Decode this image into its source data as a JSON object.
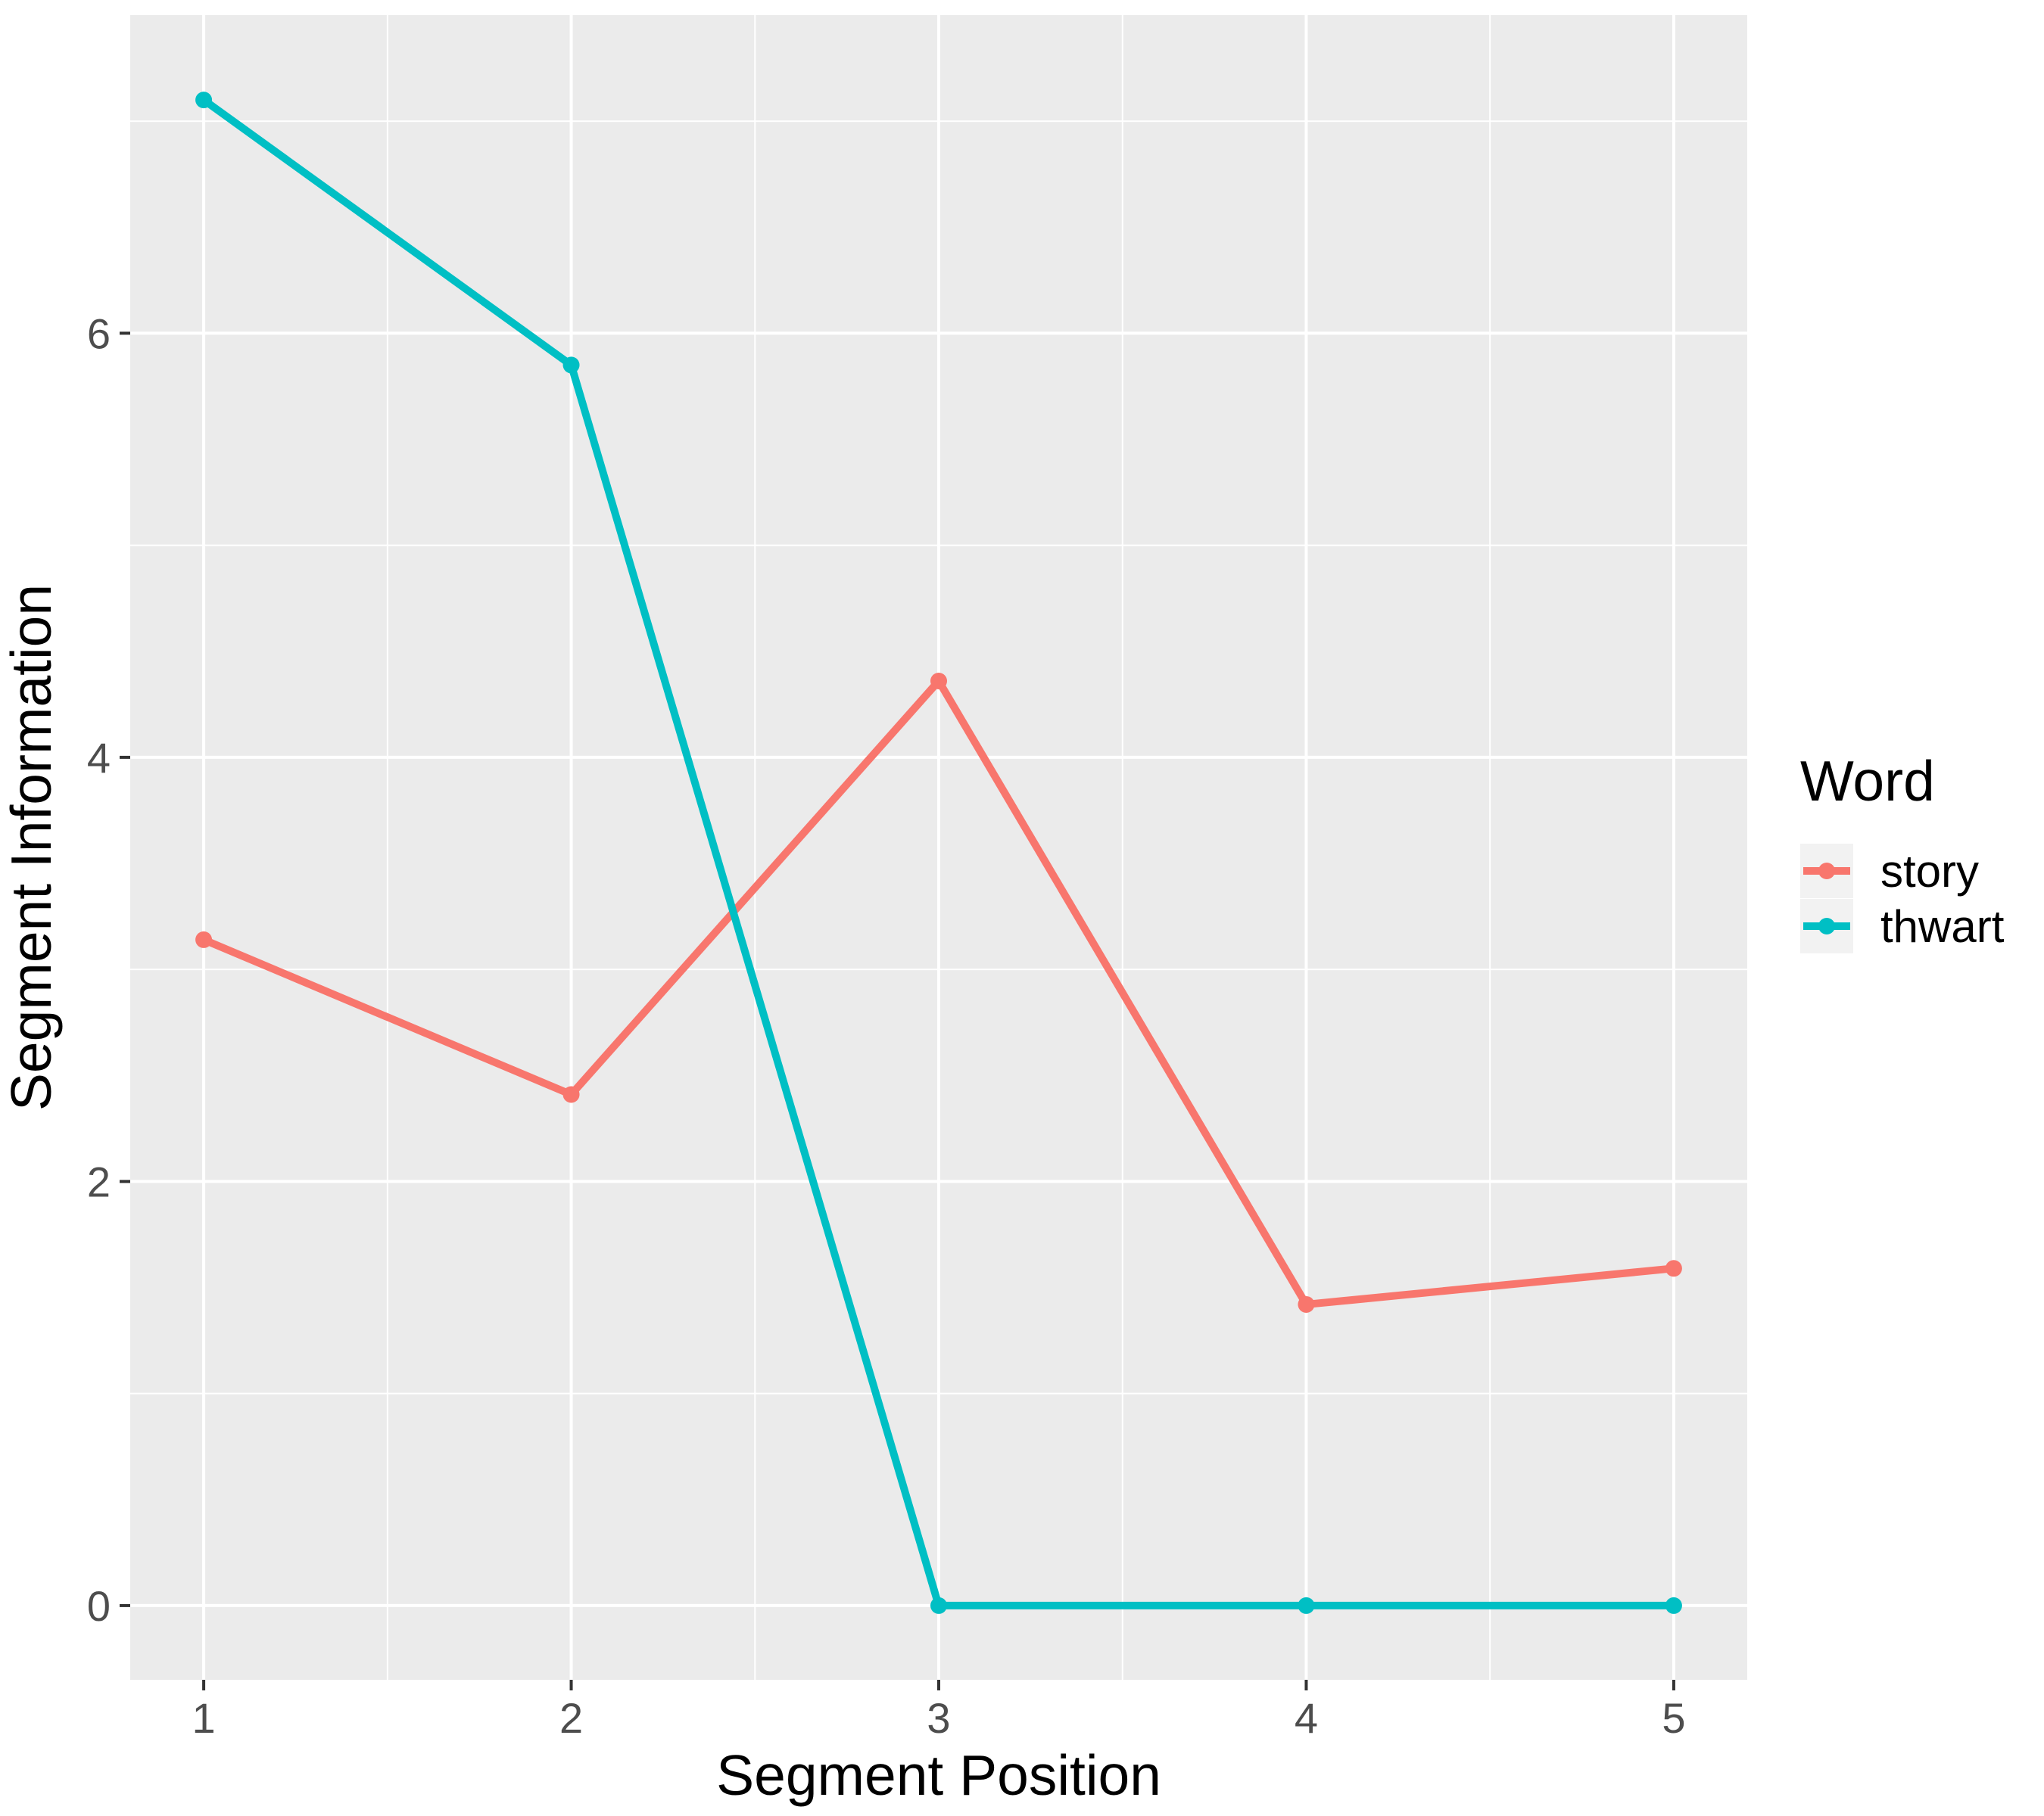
{
  "chart_data": {
    "type": "line",
    "title": "",
    "xlabel": "Segment Position",
    "ylabel": "Segment Information",
    "x": [
      1,
      2,
      3,
      4,
      5
    ],
    "x_ticks": [
      "1",
      "2",
      "3",
      "4",
      "5"
    ],
    "y_ticks": [
      "0",
      "2",
      "4",
      "6"
    ],
    "xlim": [
      0.8,
      5.2
    ],
    "ylim": [
      -0.35,
      7.5
    ],
    "grid": true,
    "legend": {
      "title": "Word",
      "placement": "right"
    },
    "series": [
      {
        "name": "story",
        "color": "#F8766D",
        "values": [
          3.14,
          2.41,
          4.36,
          1.42,
          1.59
        ]
      },
      {
        "name": "thwart",
        "color": "#00BFC4",
        "values": [
          7.1,
          5.85,
          0.0,
          0.0,
          0.0
        ]
      }
    ]
  }
}
